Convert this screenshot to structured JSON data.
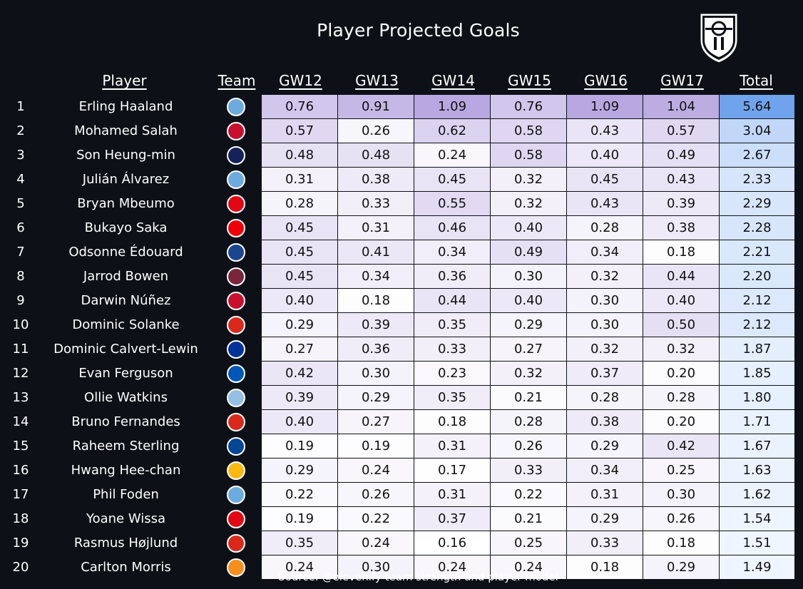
{
  "title": "Player Projected Goals",
  "source": "Source: @elevenify team strength and player model",
  "logo_icon": "elevenify-shield-icon",
  "headers": {
    "player": "Player",
    "team": "Team",
    "gw": [
      "GW12",
      "GW13",
      "GW14",
      "GW15",
      "GW16",
      "GW17"
    ],
    "total": "Total"
  },
  "chart_data": {
    "type": "table",
    "title": "Player Projected Goals",
    "columns": [
      "GW12",
      "GW13",
      "GW14",
      "GW15",
      "GW16",
      "GW17",
      "Total"
    ],
    "rows": [
      {
        "rank": "1",
        "player": "Erling Haaland",
        "team_icon": "man-city-crest-icon",
        "team_color": "#6cabdd",
        "values": [
          "0.76",
          "0.91",
          "1.09",
          "0.76",
          "1.09",
          "1.04"
        ],
        "total": "5.64"
      },
      {
        "rank": "2",
        "player": "Mohamed Salah",
        "team_icon": "liverpool-crest-icon",
        "team_color": "#c8102e",
        "values": [
          "0.57",
          "0.26",
          "0.62",
          "0.58",
          "0.43",
          "0.57"
        ],
        "total": "3.04"
      },
      {
        "rank": "3",
        "player": "Son Heung-min",
        "team_icon": "tottenham-crest-icon",
        "team_color": "#132257",
        "values": [
          "0.48",
          "0.48",
          "0.24",
          "0.58",
          "0.40",
          "0.49"
        ],
        "total": "2.67"
      },
      {
        "rank": "4",
        "player": "Julián Álvarez",
        "team_icon": "man-city-crest-icon",
        "team_color": "#6cabdd",
        "values": [
          "0.31",
          "0.38",
          "0.45",
          "0.32",
          "0.45",
          "0.43"
        ],
        "total": "2.33"
      },
      {
        "rank": "5",
        "player": "Bryan Mbeumo",
        "team_icon": "brentford-crest-icon",
        "team_color": "#e30613",
        "values": [
          "0.28",
          "0.33",
          "0.55",
          "0.32",
          "0.43",
          "0.39"
        ],
        "total": "2.29"
      },
      {
        "rank": "6",
        "player": "Bukayo Saka",
        "team_icon": "arsenal-crest-icon",
        "team_color": "#ef0107",
        "values": [
          "0.45",
          "0.31",
          "0.46",
          "0.40",
          "0.28",
          "0.38"
        ],
        "total": "2.28"
      },
      {
        "rank": "7",
        "player": "Odsonne Édouard",
        "team_icon": "crystal-palace-crest-icon",
        "team_color": "#1b458f",
        "values": [
          "0.45",
          "0.41",
          "0.34",
          "0.49",
          "0.34",
          "0.18"
        ],
        "total": "2.21"
      },
      {
        "rank": "8",
        "player": "Jarrod Bowen",
        "team_icon": "west-ham-crest-icon",
        "team_color": "#7a263a",
        "values": [
          "0.45",
          "0.34",
          "0.36",
          "0.30",
          "0.32",
          "0.44"
        ],
        "total": "2.20"
      },
      {
        "rank": "9",
        "player": "Darwin Núñez",
        "team_icon": "liverpool-crest-icon",
        "team_color": "#c8102e",
        "values": [
          "0.40",
          "0.18",
          "0.44",
          "0.40",
          "0.30",
          "0.40"
        ],
        "total": "2.12"
      },
      {
        "rank": "10",
        "player": "Dominic Solanke",
        "team_icon": "bournemouth-crest-icon",
        "team_color": "#da291c",
        "values": [
          "0.29",
          "0.39",
          "0.35",
          "0.29",
          "0.30",
          "0.50"
        ],
        "total": "2.12"
      },
      {
        "rank": "11",
        "player": "Dominic Calvert-Lewin",
        "team_icon": "everton-crest-icon",
        "team_color": "#003399",
        "values": [
          "0.27",
          "0.36",
          "0.33",
          "0.27",
          "0.32",
          "0.32"
        ],
        "total": "1.87"
      },
      {
        "rank": "12",
        "player": "Evan Ferguson",
        "team_icon": "brighton-crest-icon",
        "team_color": "#0057b8",
        "values": [
          "0.42",
          "0.30",
          "0.23",
          "0.32",
          "0.37",
          "0.20"
        ],
        "total": "1.85"
      },
      {
        "rank": "13",
        "player": "Ollie Watkins",
        "team_icon": "aston-villa-crest-icon",
        "team_color": "#95bfe5",
        "values": [
          "0.39",
          "0.29",
          "0.35",
          "0.21",
          "0.28",
          "0.28"
        ],
        "total": "1.80"
      },
      {
        "rank": "14",
        "player": "Bruno Fernandes",
        "team_icon": "man-united-crest-icon",
        "team_color": "#da291c",
        "values": [
          "0.40",
          "0.27",
          "0.18",
          "0.28",
          "0.38",
          "0.20"
        ],
        "total": "1.71"
      },
      {
        "rank": "15",
        "player": "Raheem Sterling",
        "team_icon": "chelsea-crest-icon",
        "team_color": "#034694",
        "values": [
          "0.19",
          "0.19",
          "0.31",
          "0.26",
          "0.29",
          "0.42"
        ],
        "total": "1.67"
      },
      {
        "rank": "16",
        "player": "Hwang Hee-chan",
        "team_icon": "wolves-crest-icon",
        "team_color": "#fdb913",
        "values": [
          "0.29",
          "0.24",
          "0.17",
          "0.33",
          "0.34",
          "0.25"
        ],
        "total": "1.63"
      },
      {
        "rank": "17",
        "player": "Phil Foden",
        "team_icon": "man-city-crest-icon",
        "team_color": "#6cabdd",
        "values": [
          "0.22",
          "0.26",
          "0.31",
          "0.22",
          "0.31",
          "0.30"
        ],
        "total": "1.62"
      },
      {
        "rank": "18",
        "player": "Yoane Wissa",
        "team_icon": "brentford-crest-icon",
        "team_color": "#e30613",
        "values": [
          "0.19",
          "0.22",
          "0.37",
          "0.21",
          "0.29",
          "0.26"
        ],
        "total": "1.54"
      },
      {
        "rank": "19",
        "player": "Rasmus Højlund",
        "team_icon": "man-united-crest-icon",
        "team_color": "#da291c",
        "values": [
          "0.35",
          "0.24",
          "0.16",
          "0.25",
          "0.33",
          "0.18"
        ],
        "total": "1.51"
      },
      {
        "rank": "20",
        "player": "Carlton Morris",
        "team_icon": "luton-crest-icon",
        "team_color": "#f78f1e",
        "values": [
          "0.24",
          "0.30",
          "0.24",
          "0.24",
          "0.18",
          "0.29"
        ],
        "total": "1.49"
      }
    ]
  }
}
